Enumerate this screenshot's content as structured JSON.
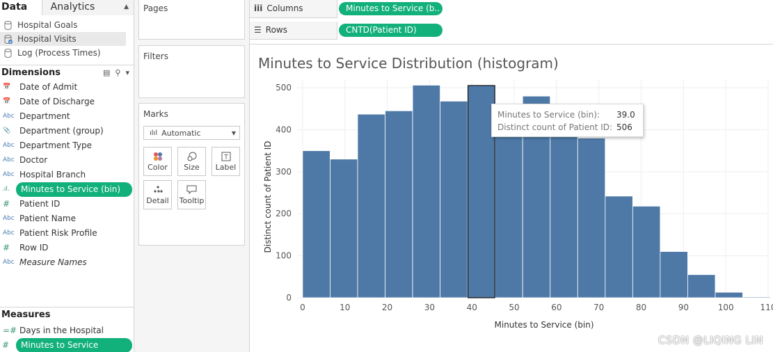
{
  "tabs": {
    "data": "Data",
    "analytics": "Analytics"
  },
  "sources": [
    {
      "label": "Hospital Goals",
      "active": false
    },
    {
      "label": "Hospital Visits",
      "active": true
    },
    {
      "label": "Log (Process Times)",
      "active": false
    }
  ],
  "dimensions": {
    "title": "Dimensions",
    "items": [
      {
        "type": "date",
        "label": "Date of Admit"
      },
      {
        "type": "date",
        "label": "Date of Discharge"
      },
      {
        "type": "Abc",
        "label": "Department"
      },
      {
        "type": "group",
        "label": "Department (group)"
      },
      {
        "type": "Abc",
        "label": "Department Type"
      },
      {
        "type": "Abc",
        "label": "Doctor"
      },
      {
        "type": "Abc",
        "label": "Hospital Branch"
      },
      {
        "type": "bin",
        "label": "Minutes to Service (bin)",
        "selected": true
      },
      {
        "type": "#",
        "label": "Patient ID"
      },
      {
        "type": "Abc",
        "label": "Patient Name"
      },
      {
        "type": "Abc",
        "label": "Patient Risk Profile"
      },
      {
        "type": "#",
        "label": "Row ID"
      },
      {
        "type": "Abc",
        "label": "Measure Names",
        "italic": true
      }
    ]
  },
  "measures": {
    "title": "Measures",
    "items": [
      {
        "type": "#",
        "label": "Days in the Hospital"
      },
      {
        "type": "#",
        "label": "Minutes to Service",
        "selected": true
      }
    ]
  },
  "pages": {
    "title": "Pages"
  },
  "filters": {
    "title": "Filters"
  },
  "marks": {
    "title": "Marks",
    "mark_type": "Automatic",
    "buttons": [
      "Color",
      "Size",
      "Label",
      "Detail",
      "Tooltip"
    ]
  },
  "columns": {
    "label": "Columns",
    "pill": "Minutes to Service (b.."
  },
  "rows": {
    "label": "Rows",
    "pill": "CNTD(Patient ID)"
  },
  "chart_data": {
    "type": "bar",
    "title": "Minutes to Service Distribution (histogram)",
    "xlabel": "Minutes to Service (bin)",
    "ylabel": "Distinct count of Patient ID",
    "bin_size": 6.5,
    "bin_starts": [
      0,
      6.5,
      13,
      19.5,
      26,
      32.5,
      39,
      45.5,
      52,
      58.5,
      65,
      71.5,
      78,
      84.5,
      91,
      97.5,
      104
    ],
    "values": [
      350,
      330,
      437,
      445,
      506,
      468,
      506,
      460,
      480,
      400,
      380,
      242,
      218,
      110,
      55,
      13,
      2
    ],
    "x_ticks": [
      0,
      10,
      20,
      30,
      40,
      50,
      60,
      70,
      80,
      90,
      100,
      110
    ],
    "y_ticks": [
      0,
      100,
      200,
      300,
      400,
      500
    ],
    "xlim": [
      -1.3,
      110
    ],
    "ylim": [
      0,
      520
    ],
    "highlight_index": 6,
    "bar_color": "#4e79a7",
    "grid": true
  },
  "tooltip": {
    "label1": "Minutes to Service (bin):",
    "value1": "39.0",
    "label2": "Distinct count of Patient ID:",
    "value2": "506"
  },
  "watermark": "CSDN @LIQING LIN"
}
